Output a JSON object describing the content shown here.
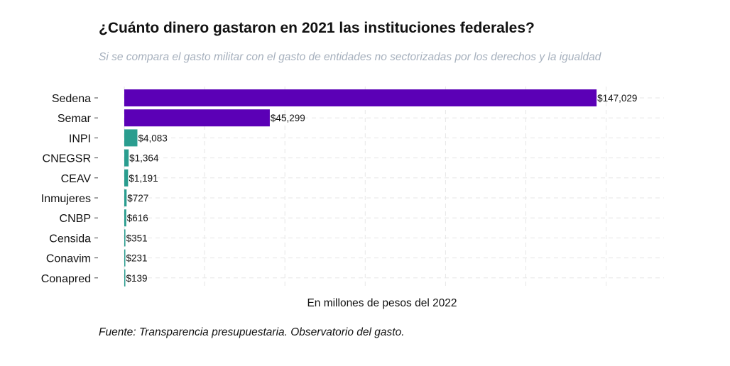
{
  "title": "¿Cuánto dinero gastaron en 2021 las instituciones federales?",
  "subtitle": "Si se compara el gasto militar con el gasto de entidades no sectorizadas por los derechos y la igualdad",
  "caption": "Fuente: Transparencia presupuestaria. Observatorio del gasto.",
  "chart_data": {
    "type": "bar",
    "orientation": "horizontal",
    "xlabel": "En millones de pesos del 2022",
    "ylabel": "",
    "xlim": [
      0,
      168000
    ],
    "grid": true,
    "categories": [
      "Sedena",
      "Semar",
      "INPI",
      "CNEGSR",
      "CEAV",
      "Inmujeres",
      "CNBP",
      "Censida",
      "Conavim",
      "Conapred"
    ],
    "values": [
      147029,
      45299,
      4083,
      1364,
      1191,
      727,
      616,
      351,
      231,
      139
    ],
    "value_labels": [
      "$147,029",
      "$45,299",
      "$4,083",
      "$1,364",
      "$1,191",
      "$727",
      "$616",
      "$351",
      "$231",
      "$139"
    ],
    "colors": {
      "military": "#5b00b6",
      "other": "#2a9d8f",
      "grid": "#e6e6e6"
    },
    "bar_color_groups": [
      "military",
      "military",
      "other",
      "other",
      "other",
      "other",
      "other",
      "other",
      "other",
      "other"
    ]
  }
}
